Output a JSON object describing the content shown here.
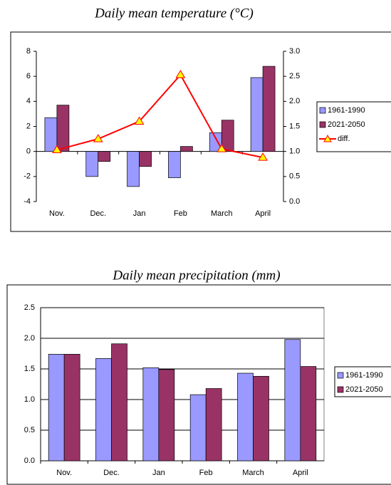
{
  "chart_data": [
    {
      "type": "bar",
      "title": "Daily mean temperature (°C)",
      "categories": [
        "Nov.",
        "Dec.",
        "Jan",
        "Feb",
        "March",
        "April"
      ],
      "series": [
        {
          "name": "1961-1990",
          "color": "#9999ff",
          "values": [
            2.7,
            -2.0,
            -2.8,
            -2.1,
            1.5,
            5.9
          ]
        },
        {
          "name": "2021-2050",
          "color": "#993366",
          "values": [
            3.7,
            -0.8,
            -1.2,
            0.4,
            2.5,
            6.8
          ]
        },
        {
          "name": "diff.",
          "color": "#ff0000",
          "axis": "y2",
          "values": [
            1.03,
            1.25,
            1.6,
            2.53,
            1.05,
            0.88
          ]
        }
      ],
      "ylim": [
        -4,
        8
      ],
      "yticks": [
        -4,
        -2,
        0,
        2,
        4,
        6,
        8
      ],
      "y2lim": [
        0,
        3
      ],
      "y2ticks": [
        {
          "value": 0,
          "label": "0.0"
        },
        {
          "value": 0.5,
          "label": "0.5"
        },
        {
          "value": 1,
          "label": "1.0"
        },
        {
          "value": 1.5,
          "label": "1.5"
        },
        {
          "value": 2,
          "label": "2.0"
        },
        {
          "value": 2.5,
          "label": "2.5"
        },
        {
          "value": 3,
          "label": "3.0"
        }
      ],
      "grid": false
    },
    {
      "type": "bar",
      "title": "Daily mean precipitation (mm)",
      "categories": [
        "Nov.",
        "Dec.",
        "Jan",
        "Feb",
        "March",
        "April"
      ],
      "series": [
        {
          "name": "1961-1990",
          "color": "#9999ff",
          "values": [
            1.74,
            1.67,
            1.52,
            1.08,
            1.43,
            1.98
          ]
        },
        {
          "name": "2021-2050",
          "color": "#993366",
          "values": [
            1.74,
            1.91,
            1.49,
            1.18,
            1.38,
            1.54
          ]
        }
      ],
      "ylim": [
        0,
        2.5
      ],
      "yticks": [
        {
          "value": 0,
          "label": "0.0"
        },
        {
          "value": 0.5,
          "label": "0.5"
        },
        {
          "value": 1,
          "label": "1.0"
        },
        {
          "value": 1.5,
          "label": "1.5"
        },
        {
          "value": 2,
          "label": "2.0"
        },
        {
          "value": 2.5,
          "label": "2.5"
        }
      ],
      "grid": true
    }
  ]
}
